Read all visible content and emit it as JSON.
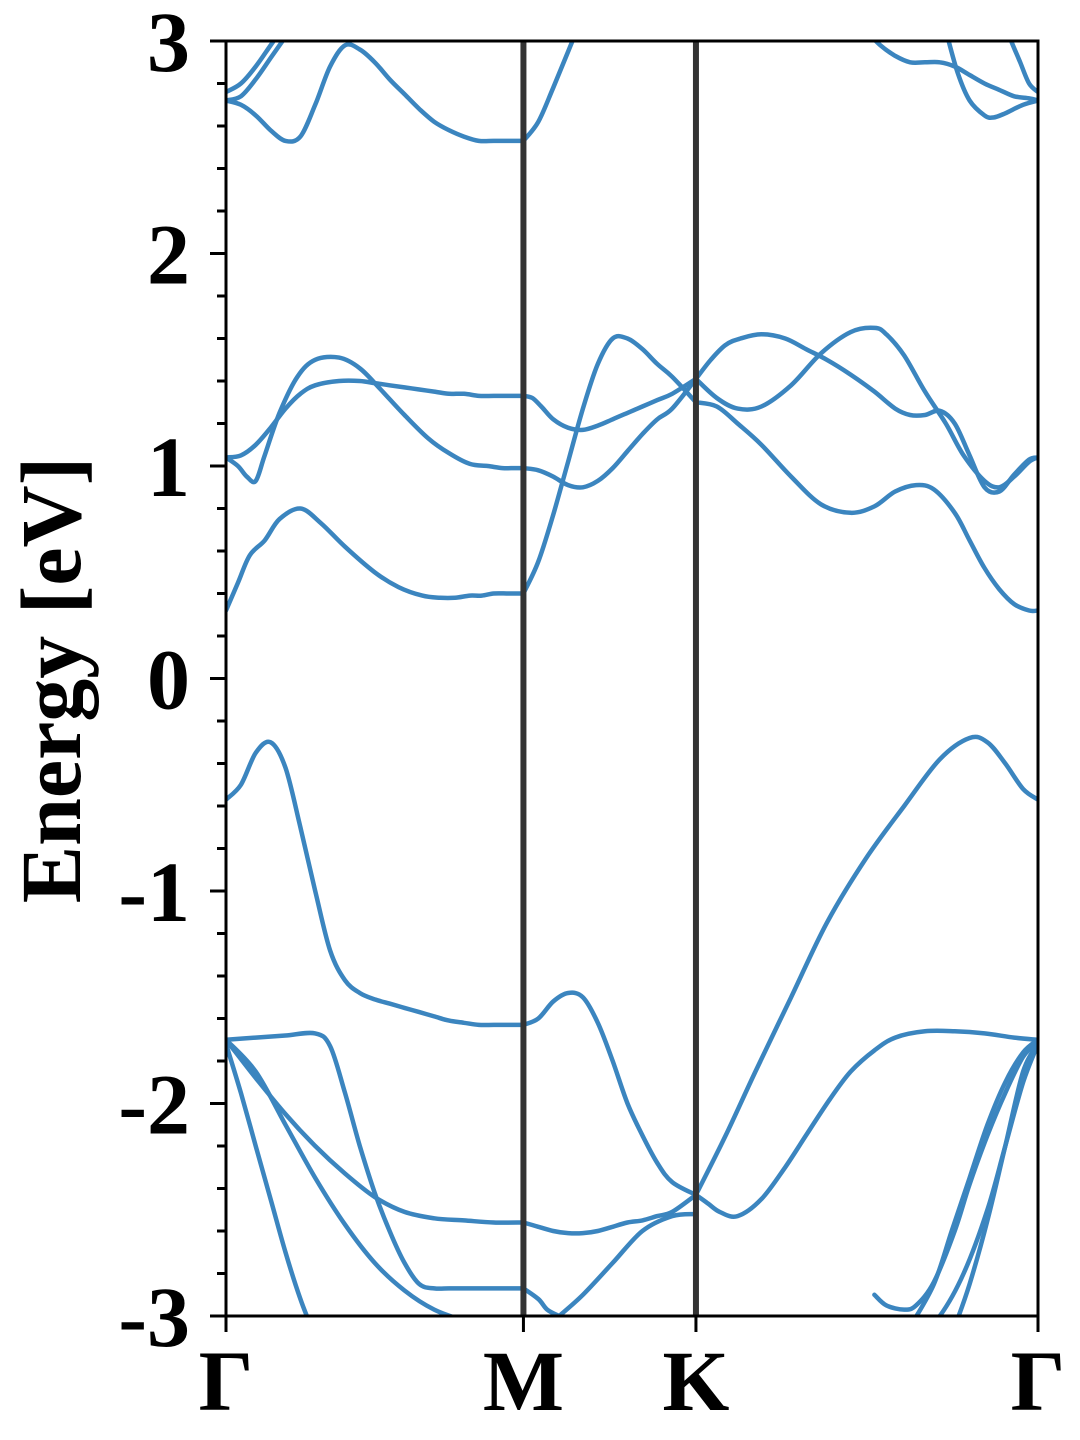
{
  "chart_data": {
    "type": "line",
    "title": "",
    "xlabel": "",
    "ylabel": "Energy [eV]",
    "ylim": [
      -3,
      3
    ],
    "y_ticks": [
      "3",
      "2",
      "1",
      "0",
      "-1",
      "-2",
      "-3"
    ],
    "y_tick_values": [
      3,
      2,
      1,
      0,
      -1,
      -2,
      -3
    ],
    "x_ticks": [
      "Γ",
      "M",
      "K",
      "Γ"
    ],
    "x_tick_values": [
      0,
      1,
      1.58,
      2.73
    ],
    "xlim": [
      0,
      2.73
    ],
    "high_symmetry_lines": [
      1,
      1.58
    ],
    "grid": false,
    "legend": "none",
    "colors": {
      "band": "#3b85bf",
      "symmetry_line": "#333333",
      "axis": "#000000"
    },
    "series": [
      {
        "x": [
          0,
          0.04,
          0.08,
          0.13,
          0.18,
          0.25,
          0.32,
          0.4,
          0.5,
          0.58,
          0.66,
          0.72,
          0.77,
          0.82,
          0.86,
          0.9,
          0.95,
          1.0
        ],
        "y": [
          0.32,
          0.45,
          0.58,
          0.65,
          0.75,
          0.8,
          0.73,
          0.62,
          0.5,
          0.43,
          0.39,
          0.38,
          0.38,
          0.39,
          0.39,
          0.4,
          0.4,
          0.4
        ]
      },
      {
        "x": [
          1.0,
          1.05,
          1.1,
          1.15,
          1.2,
          1.25,
          1.3,
          1.35,
          1.4,
          1.45,
          1.5,
          1.58
        ],
        "y": [
          0.4,
          0.55,
          0.77,
          1.02,
          1.27,
          1.48,
          1.6,
          1.6,
          1.55,
          1.48,
          1.42,
          1.3
        ]
      },
      {
        "x": [
          1.58,
          1.65,
          1.72,
          1.8,
          1.9,
          2.0,
          2.1,
          2.18,
          2.25,
          2.32,
          2.38,
          2.45,
          2.5,
          2.55,
          2.6,
          2.65,
          2.7,
          2.73
        ],
        "y": [
          1.3,
          1.28,
          1.2,
          1.1,
          0.95,
          0.82,
          0.78,
          0.81,
          0.88,
          0.91,
          0.89,
          0.78,
          0.65,
          0.52,
          0.42,
          0.35,
          0.32,
          0.32
        ]
      },
      {
        "x": [
          0,
          0.05,
          0.1,
          0.15,
          0.2,
          0.25,
          0.3,
          0.38,
          0.45,
          0.5,
          0.55,
          0.6,
          0.65,
          0.7,
          0.75,
          0.8,
          0.85,
          0.9,
          0.95,
          1.0
        ],
        "y": [
          1.04,
          1.05,
          1.1,
          1.18,
          1.27,
          1.34,
          1.38,
          1.4,
          1.4,
          1.39,
          1.38,
          1.37,
          1.36,
          1.35,
          1.34,
          1.34,
          1.33,
          1.33,
          1.33,
          1.33
        ]
      },
      {
        "x": [
          1.0,
          1.03,
          1.06,
          1.1,
          1.15,
          1.2,
          1.25,
          1.3,
          1.35,
          1.4,
          1.45,
          1.5,
          1.58
        ],
        "y": [
          1.33,
          1.32,
          1.28,
          1.22,
          1.18,
          1.17,
          1.19,
          1.22,
          1.25,
          1.28,
          1.31,
          1.34,
          1.41
        ]
      },
      {
        "x": [
          1.58,
          1.63,
          1.68,
          1.73,
          1.8,
          1.88,
          1.95,
          2.02,
          2.1,
          2.18,
          2.25,
          2.3,
          2.35,
          2.4,
          2.45,
          2.5,
          2.55,
          2.6,
          2.65,
          2.7,
          2.73
        ],
        "y": [
          1.41,
          1.5,
          1.57,
          1.6,
          1.62,
          1.6,
          1.55,
          1.5,
          1.43,
          1.35,
          1.27,
          1.24,
          1.24,
          1.26,
          1.2,
          1.05,
          0.9,
          0.88,
          0.96,
          1.03,
          1.04
        ]
      },
      {
        "x": [
          0,
          0.04,
          0.07,
          0.1,
          0.13,
          0.18,
          0.24,
          0.3,
          0.38,
          0.45,
          0.52,
          0.6,
          0.68,
          0.75,
          0.82,
          0.88,
          0.93,
          0.97,
          1.0
        ],
        "y": [
          1.04,
          1.0,
          0.95,
          0.93,
          1.05,
          1.25,
          1.42,
          1.5,
          1.51,
          1.46,
          1.36,
          1.24,
          1.13,
          1.06,
          1.01,
          1.0,
          0.99,
          0.99,
          0.99
        ]
      },
      {
        "x": [
          1.0,
          1.05,
          1.1,
          1.15,
          1.2,
          1.25,
          1.3,
          1.35,
          1.4,
          1.45,
          1.5,
          1.58
        ],
        "y": [
          0.99,
          0.98,
          0.95,
          0.91,
          0.9,
          0.93,
          0.99,
          1.07,
          1.15,
          1.22,
          1.27,
          1.41
        ]
      },
      {
        "x": [
          1.58,
          1.65,
          1.72,
          1.8,
          1.9,
          2.0,
          2.1,
          2.18,
          2.22,
          2.28,
          2.35,
          2.42,
          2.48,
          2.55,
          2.6,
          2.65,
          2.7,
          2.73
        ],
        "y": [
          1.41,
          1.32,
          1.27,
          1.28,
          1.38,
          1.53,
          1.63,
          1.65,
          1.62,
          1.52,
          1.35,
          1.2,
          1.05,
          0.93,
          0.9,
          0.95,
          1.02,
          1.04
        ]
      },
      {
        "x": [
          0,
          0.05,
          0.1,
          0.15,
          0.2,
          0.25,
          0.3,
          0.35,
          0.4,
          0.45,
          0.5,
          0.55,
          0.6,
          0.65,
          0.7,
          0.75,
          0.8,
          0.85,
          0.9,
          0.95,
          1.0
        ],
        "y": [
          -0.57,
          -0.5,
          -0.35,
          -0.3,
          -0.42,
          -0.7,
          -1.0,
          -1.28,
          -1.42,
          -1.48,
          -1.51,
          -1.53,
          -1.55,
          -1.57,
          -1.59,
          -1.61,
          -1.62,
          -1.63,
          -1.63,
          -1.63,
          -1.63
        ]
      },
      {
        "x": [
          1.0,
          1.05,
          1.1,
          1.15,
          1.2,
          1.25,
          1.3,
          1.35,
          1.4,
          1.45,
          1.5,
          1.58
        ],
        "y": [
          -1.63,
          -1.6,
          -1.52,
          -1.48,
          -1.5,
          -1.62,
          -1.8,
          -2.0,
          -2.15,
          -2.28,
          -2.37,
          -2.43
        ]
      },
      {
        "x": [
          1.58,
          1.68,
          1.78,
          1.9,
          2.02,
          2.15,
          2.28,
          2.4,
          2.5,
          2.56,
          2.62,
          2.68,
          2.73
        ],
        "y": [
          -2.43,
          -2.15,
          -1.85,
          -1.5,
          -1.15,
          -0.85,
          -0.6,
          -0.38,
          -0.28,
          -0.3,
          -0.4,
          -0.52,
          -0.57
        ]
      },
      {
        "x": [
          0,
          0.1,
          0.2,
          0.3,
          0.35,
          0.4,
          0.45,
          0.5,
          0.55,
          0.6,
          0.65,
          0.7,
          0.75,
          0.8,
          0.85,
          0.9,
          0.95,
          1.0
        ],
        "y": [
          -1.7,
          -1.69,
          -1.68,
          -1.67,
          -1.73,
          -1.95,
          -2.2,
          -2.42,
          -2.6,
          -2.75,
          -2.85,
          -2.87,
          -2.87,
          -2.87,
          -2.87,
          -2.87,
          -2.87,
          -2.87
        ]
      },
      {
        "x": [
          1.0,
          1.05,
          1.08,
          1.12
        ],
        "y": [
          -2.87,
          -2.92,
          -2.97,
          -3.0
        ]
      },
      {
        "x": [
          0,
          0.1,
          0.2,
          0.3,
          0.4,
          0.5,
          0.6,
          0.7,
          0.8,
          0.9,
          1.0
        ],
        "y": [
          -1.7,
          -1.88,
          -2.05,
          -2.2,
          -2.33,
          -2.44,
          -2.51,
          -2.54,
          -2.55,
          -2.56,
          -2.56
        ]
      },
      {
        "x": [
          1.0,
          1.05,
          1.1,
          1.15,
          1.2,
          1.25,
          1.3,
          1.35,
          1.4,
          1.45,
          1.5,
          1.58
        ],
        "y": [
          -2.56,
          -2.58,
          -2.6,
          -2.61,
          -2.61,
          -2.6,
          -2.58,
          -2.56,
          -2.55,
          -2.53,
          -2.51,
          -2.43
        ]
      },
      {
        "x": [
          1.58,
          1.62,
          1.66,
          1.72,
          1.8,
          1.88,
          1.95,
          2.03,
          2.1,
          2.18,
          2.25,
          2.35,
          2.45,
          2.55,
          2.65,
          2.73
        ],
        "y": [
          -2.43,
          -2.47,
          -2.51,
          -2.53,
          -2.45,
          -2.3,
          -2.15,
          -1.98,
          -1.85,
          -1.75,
          -1.69,
          -1.66,
          -1.66,
          -1.67,
          -1.69,
          -1.7
        ]
      },
      {
        "x": [
          0,
          0.1,
          0.2,
          0.3,
          0.4,
          0.5,
          0.6,
          0.7,
          0.8,
          0.9,
          0.95
        ],
        "y": [
          -1.7,
          -1.85,
          -2.1,
          -2.35,
          -2.57,
          -2.75,
          -2.88,
          -2.97,
          -3.02,
          -3.05,
          -3.07
        ]
      },
      {
        "x": [
          0,
          0.05,
          0.1,
          0.15,
          0.2,
          0.25,
          0.3,
          0.35
        ],
        "y": [
          -1.72,
          -1.95,
          -2.2,
          -2.45,
          -2.7,
          -2.92,
          -3.1,
          -3.3
        ]
      },
      {
        "x": [
          1.58,
          1.5,
          1.4,
          1.3,
          1.2,
          1.12
        ],
        "y": [
          -2.52,
          -2.53,
          -2.6,
          -2.75,
          -2.9,
          -3.0
        ]
      },
      {
        "x": [
          2.73,
          2.68,
          2.62,
          2.56,
          2.48,
          2.4,
          2.3,
          2.22,
          2.18
        ],
        "y": [
          -1.72,
          -1.9,
          -2.2,
          -2.5,
          -2.8,
          -3.0,
          -3.15,
          -3.25,
          -3.3
        ]
      },
      {
        "x": [
          2.73,
          2.68,
          2.62,
          2.56,
          2.5,
          2.45,
          2.38,
          2.32,
          2.28,
          2.22,
          2.18
        ],
        "y": [
          -1.71,
          -1.78,
          -1.95,
          -2.15,
          -2.38,
          -2.6,
          -2.84,
          -2.95,
          -2.97,
          -2.95,
          -2.9
        ]
      },
      {
        "x": [
          2.73,
          2.68,
          2.62,
          2.56,
          2.5,
          2.45,
          2.42
        ],
        "y": [
          -1.72,
          -1.85,
          -2.2,
          -2.55,
          -2.85,
          -3.05,
          -3.15
        ]
      },
      {
        "x": [
          2.73,
          2.68,
          2.62,
          2.56,
          2.5,
          2.44,
          2.38,
          2.3
        ],
        "y": [
          -1.7,
          -1.76,
          -1.9,
          -2.1,
          -2.35,
          -2.6,
          -2.85,
          -3.05
        ]
      },
      {
        "x": [
          0,
          0.05,
          0.1,
          0.15,
          0.2,
          0.25
        ],
        "y": [
          2.72,
          2.74,
          2.82,
          2.92,
          3.02,
          3.12
        ]
      },
      {
        "x": [
          0,
          0.05,
          0.1,
          0.15,
          0.2,
          0.25,
          0.3,
          0.35,
          0.4,
          0.45,
          0.5,
          0.55,
          0.6,
          0.65,
          0.7,
          0.75,
          0.8,
          0.85,
          0.9,
          0.95,
          1.0
        ],
        "y": [
          2.72,
          2.7,
          2.65,
          2.58,
          2.53,
          2.55,
          2.7,
          2.88,
          2.98,
          2.96,
          2.9,
          2.82,
          2.75,
          2.68,
          2.62,
          2.58,
          2.55,
          2.53,
          2.53,
          2.53,
          2.53
        ]
      },
      {
        "x": [
          1.0,
          1.05,
          1.1,
          1.15,
          1.2
        ],
        "y": [
          2.53,
          2.62,
          2.78,
          2.95,
          3.12
        ]
      },
      {
        "x": [
          0,
          0.05,
          0.1,
          0.15,
          0.2
        ],
        "y": [
          2.76,
          2.8,
          2.88,
          2.98,
          3.08
        ]
      },
      {
        "x": [
          2.15,
          2.2,
          2.25,
          2.3,
          2.35,
          2.4,
          2.45,
          2.5,
          2.55,
          2.6,
          2.65,
          2.7,
          2.73
        ],
        "y": [
          3.05,
          2.98,
          2.93,
          2.9,
          2.9,
          2.9,
          2.88,
          2.84,
          2.8,
          2.77,
          2.74,
          2.73,
          2.72
        ]
      },
      {
        "x": [
          2.73,
          2.68,
          2.62,
          2.58,
          2.55,
          2.5,
          2.46,
          2.42
        ],
        "y": [
          2.72,
          2.7,
          2.66,
          2.64,
          2.65,
          2.72,
          2.85,
          3.05
        ]
      },
      {
        "x": [
          2.73,
          2.7,
          2.67,
          2.64,
          2.62
        ],
        "y": [
          2.76,
          2.8,
          2.9,
          3.0,
          3.08
        ]
      }
    ]
  }
}
